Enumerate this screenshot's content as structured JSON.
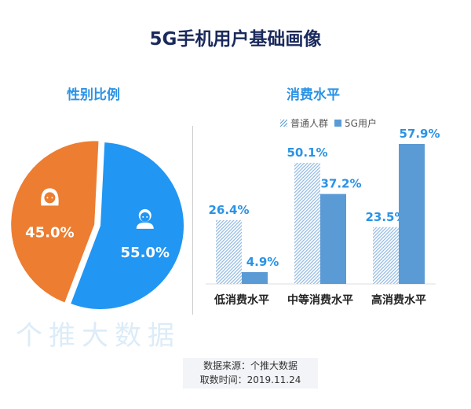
{
  "title": "5G手机用户基础画像",
  "watermark": "个推大数据",
  "footer": {
    "source": "数据来源：个推大数据",
    "time": "取数时间：2019.11.24"
  },
  "chart_data": [
    {
      "type": "pie",
      "title": "性别比例",
      "slices": [
        {
          "label": "male",
          "value": 55.0,
          "display": "55.0%",
          "color": "#2196f3",
          "icon": "male-user-icon"
        },
        {
          "label": "female",
          "value": 45.0,
          "display": "45.0%",
          "color": "#ed7d31",
          "icon": "female-user-icon"
        }
      ]
    },
    {
      "type": "bar",
      "title": "消费水平",
      "categories": [
        "低消费水平",
        "中等消费水平",
        "高消费水平"
      ],
      "series": [
        {
          "name": "普通人群",
          "values": [
            26.4,
            50.1,
            23.5
          ],
          "labels": [
            "26.4%",
            "50.1%",
            "23.5%"
          ],
          "color": "#5b9bd5",
          "pattern": "hatched"
        },
        {
          "name": "5G用户",
          "values": [
            4.9,
            37.2,
            57.9
          ],
          "labels": [
            "4.9%",
            "37.2%",
            "57.9%"
          ],
          "color": "#5b9bd5",
          "pattern": "solid"
        }
      ],
      "label_color": "#2a93e6",
      "ylim": [
        0,
        60
      ],
      "grid": false,
      "legend": "top"
    }
  ]
}
